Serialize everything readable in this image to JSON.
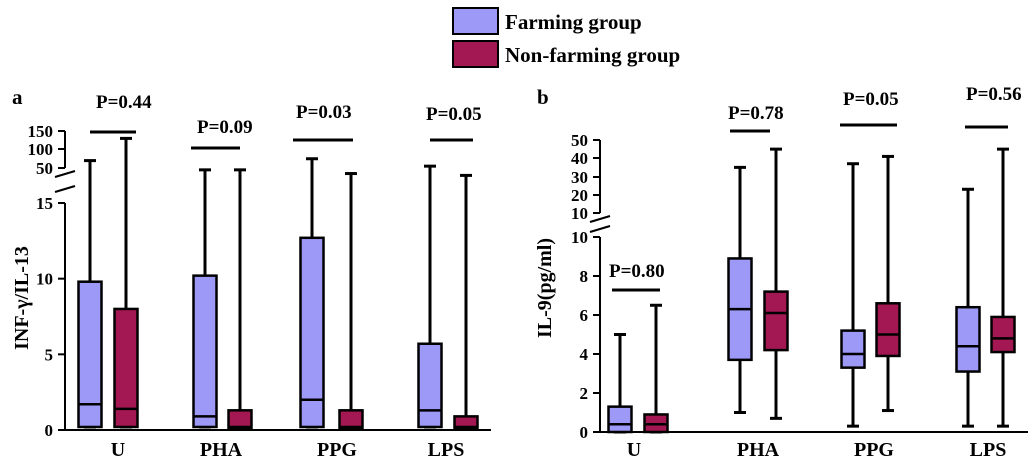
{
  "legend": [
    {
      "label": "Farming group",
      "color": "#9c99f7"
    },
    {
      "label": "Non-farming group",
      "color": "#a31852"
    }
  ],
  "chart_data": [
    {
      "panel": "a",
      "type": "box",
      "ylabel": "INF-γ/IL-13",
      "categories": [
        "U",
        "PHA",
        "PPG",
        "LPS"
      ],
      "y_lower_ticks": [
        "0",
        "5",
        "10",
        "15"
      ],
      "y_upper_ticks": [
        "50",
        "100",
        "150"
      ],
      "y_lower_range": [
        0,
        15
      ],
      "y_upper_range": [
        50,
        150
      ],
      "series": [
        {
          "name": "Farming group",
          "boxes": [
            {
              "min": 0.2,
              "q1": 0.2,
              "median": 1.7,
              "q3": 9.8,
              "max": 70
            },
            {
              "min": 0.2,
              "q1": 0.2,
              "median": 0.9,
              "q3": 10.2,
              "max": 45
            },
            {
              "min": 0.2,
              "q1": 0.2,
              "median": 2.0,
              "q3": 12.7,
              "max": 75
            },
            {
              "min": 0.2,
              "q1": 0.2,
              "median": 1.3,
              "q3": 5.7,
              "max": 55
            }
          ]
        },
        {
          "name": "Non-farming group",
          "boxes": [
            {
              "min": 0.2,
              "q1": 0.2,
              "median": 1.4,
              "q3": 8.0,
              "max": 130
            },
            {
              "min": 0.1,
              "q1": 0.1,
              "median": 0.2,
              "q3": 1.3,
              "max": 45
            },
            {
              "min": 0.1,
              "q1": 0.1,
              "median": 0.2,
              "q3": 1.3,
              "max": 35
            },
            {
              "min": 0.1,
              "q1": 0.1,
              "median": 0.2,
              "q3": 0.9,
              "max": 30
            }
          ]
        }
      ],
      "pvalues": [
        "P=0.44",
        "P=0.09",
        "P=0.03",
        "P=0.05"
      ]
    },
    {
      "panel": "b",
      "type": "box",
      "ylabel": "IL-9(pg/ml)",
      "categories": [
        "U",
        "PHA",
        "PPG",
        "LPS"
      ],
      "y_lower_ticks": [
        "0",
        "2",
        "4",
        "6",
        "8",
        "10"
      ],
      "y_upper_ticks": [
        "10",
        "20",
        "30",
        "40",
        "50"
      ],
      "y_lower_range": [
        0,
        10
      ],
      "y_upper_range": [
        10,
        50
      ],
      "series": [
        {
          "name": "Farming group",
          "boxes": [
            {
              "min": 0,
              "q1": 0,
              "median": 0.4,
              "q3": 1.3,
              "max": 5.0
            },
            {
              "min": 1.0,
              "q1": 3.7,
              "median": 6.3,
              "q3": 8.9,
              "max": 35
            },
            {
              "min": 0.3,
              "q1": 3.3,
              "median": 4.0,
              "q3": 5.2,
              "max": 37
            },
            {
              "min": 0.3,
              "q1": 3.1,
              "median": 4.4,
              "q3": 6.4,
              "max": 23
            }
          ]
        },
        {
          "name": "Non-farming group",
          "boxes": [
            {
              "min": 0,
              "q1": 0,
              "median": 0.4,
              "q3": 0.9,
              "max": 6.5
            },
            {
              "min": 0.7,
              "q1": 4.2,
              "median": 6.1,
              "q3": 7.2,
              "max": 45
            },
            {
              "min": 1.1,
              "q1": 3.9,
              "median": 5.0,
              "q3": 6.6,
              "max": 41
            },
            {
              "min": 0.3,
              "q1": 4.1,
              "median": 4.8,
              "q3": 5.9,
              "max": 45
            }
          ]
        }
      ],
      "pvalues": [
        "P=0.80",
        "P=0.78",
        "P=0.05",
        "P=0.56"
      ]
    }
  ]
}
